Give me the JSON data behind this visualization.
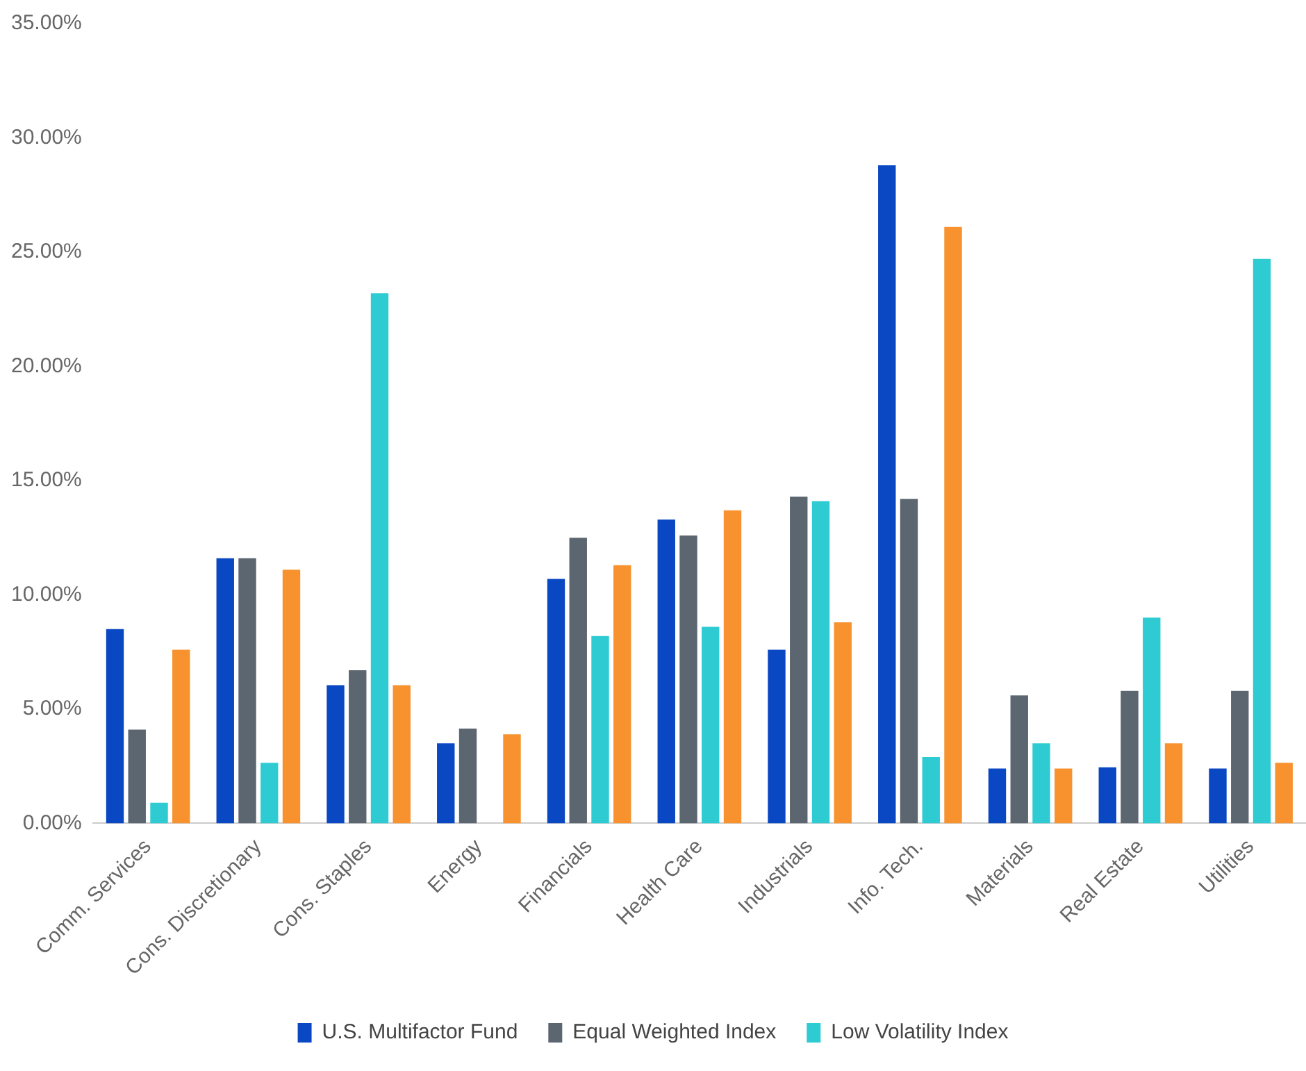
{
  "chart_data": {
    "type": "bar",
    "categories": [
      "Comm. Services",
      "Cons. Discretionary",
      "Cons. Staples",
      "Energy",
      "Financials",
      "Health Care",
      "Industrials",
      "Info. Tech.",
      "Materials",
      "Real Estate",
      "Utilities"
    ],
    "series": [
      {
        "name": "U.S. Multifactor Fund",
        "color": "#0a47c2",
        "values": [
          8.5,
          11.6,
          6.05,
          3.5,
          10.7,
          13.3,
          7.6,
          28.8,
          2.4,
          2.45,
          2.4
        ]
      },
      {
        "name": "Equal Weighted Index",
        "color": "#5b6670",
        "values": [
          4.1,
          11.6,
          6.7,
          4.15,
          12.5,
          12.6,
          14.3,
          14.2,
          5.6,
          5.8,
          5.8
        ]
      },
      {
        "name": "Low Volatility Index",
        "color": "#2ecbd3",
        "values": [
          0.9,
          2.65,
          23.2,
          0,
          8.2,
          8.6,
          14.1,
          2.9,
          3.5,
          9.0,
          24.7
        ]
      },
      {
        "color": "#f7922e",
        "values": [
          7.6,
          11.1,
          6.05,
          3.9,
          11.3,
          13.7,
          8.8,
          26.1,
          2.4,
          3.5,
          2.65
        ]
      }
    ],
    "ylim": [
      0,
      35
    ],
    "yticks": [
      {
        "value": 0,
        "label": "0.00%"
      },
      {
        "value": 5,
        "label": "5.00%"
      },
      {
        "value": 10,
        "label": "10.00%"
      },
      {
        "value": 15,
        "label": "15.00%"
      },
      {
        "value": 20,
        "label": "20.00%"
      },
      {
        "value": 25,
        "label": "25.00%"
      },
      {
        "value": 30,
        "label": "30.00%"
      },
      {
        "value": 35,
        "label": "35.00%"
      }
    ],
    "grid": false,
    "legend": "bottom"
  }
}
